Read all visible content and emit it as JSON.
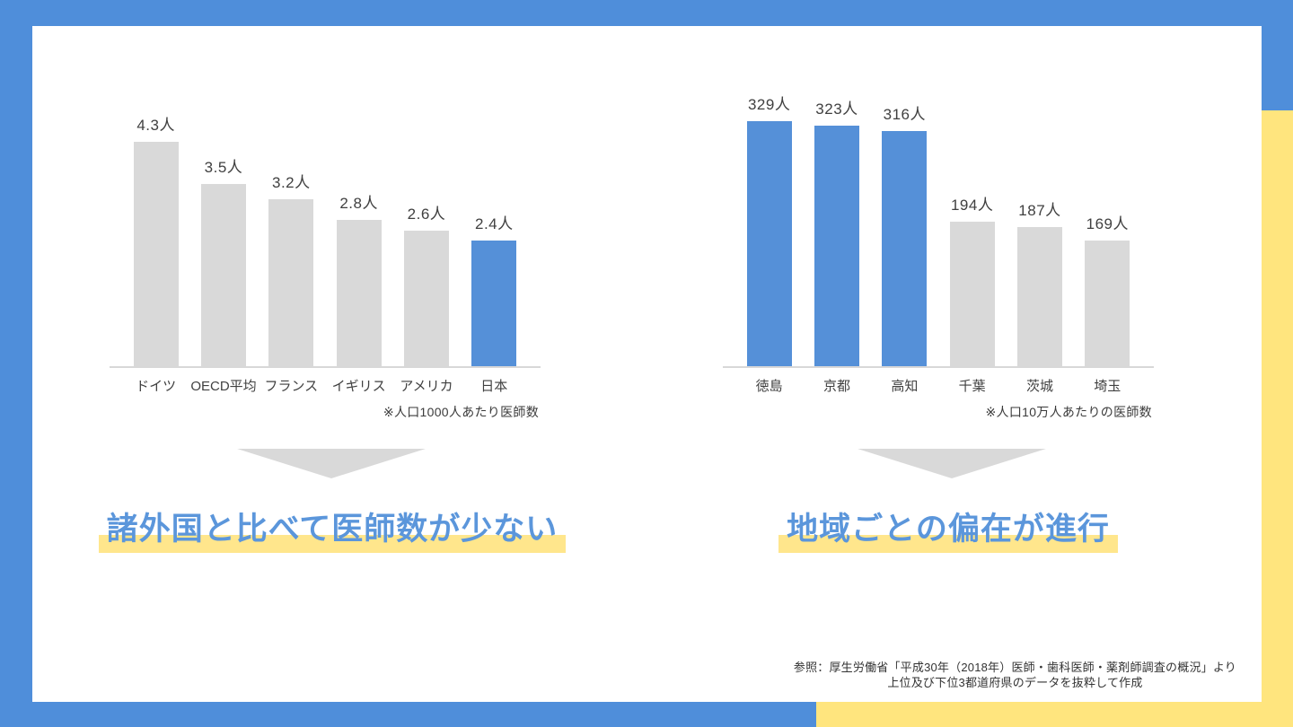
{
  "colors": {
    "accent-blue": "#4F8EDA",
    "accent-yellow": "#FFE57E",
    "highlight-yellow": "#FFE68C",
    "bar-blue": "#5590D8",
    "bar-gray": "#D9D9D9",
    "arrow-gray": "#D9D9D9",
    "headline-blue": "#5B96DB",
    "text-dark": "#404040",
    "axis-gray": "#D8D8D8"
  },
  "headlines": {
    "left": "諸外国と比べて医師数が少ない",
    "right": "地域ごとの偏在が進行"
  },
  "source": {
    "line1": "参照：厚生労働省「平成30年（2018年）医師・歯科医師・薬剤師調査の概況」より",
    "line2": "上位及び下位3都道府県のデータを抜粋して作成"
  },
  "chart_data": [
    {
      "type": "bar",
      "title": "",
      "categories": [
        "ドイツ",
        "OECD平均",
        "フランス",
        "イギリス",
        "アメリカ",
        "日本"
      ],
      "values": [
        4.3,
        3.5,
        3.2,
        2.8,
        2.6,
        2.4
      ],
      "labels": [
        "4.3人",
        "3.5人",
        "3.2人",
        "2.8人",
        "2.6人",
        "2.4人"
      ],
      "highlight_indices": [
        5
      ],
      "bar_color_default": "#D9D9D9",
      "bar_color_highlight": "#5590D8",
      "note": "※人口1000人あたり医師数",
      "xlabel": "",
      "ylabel": "",
      "ylim": [
        0,
        4.3
      ],
      "grid": false,
      "legend": false
    },
    {
      "type": "bar",
      "title": "",
      "categories": [
        "徳島",
        "京都",
        "高知",
        "千葉",
        "茨城",
        "埼玉"
      ],
      "values": [
        329,
        323,
        316,
        194,
        187,
        169
      ],
      "labels": [
        "329人",
        "323人",
        "316人",
        "194人",
        "187人",
        "169人"
      ],
      "highlight_indices": [
        0,
        1,
        2
      ],
      "bar_color_default": "#D9D9D9",
      "bar_color_highlight": "#5590D8",
      "note": "※人口10万人あたりの医師数",
      "xlabel": "",
      "ylabel": "",
      "ylim": [
        0,
        329
      ],
      "grid": false,
      "legend": false
    }
  ]
}
